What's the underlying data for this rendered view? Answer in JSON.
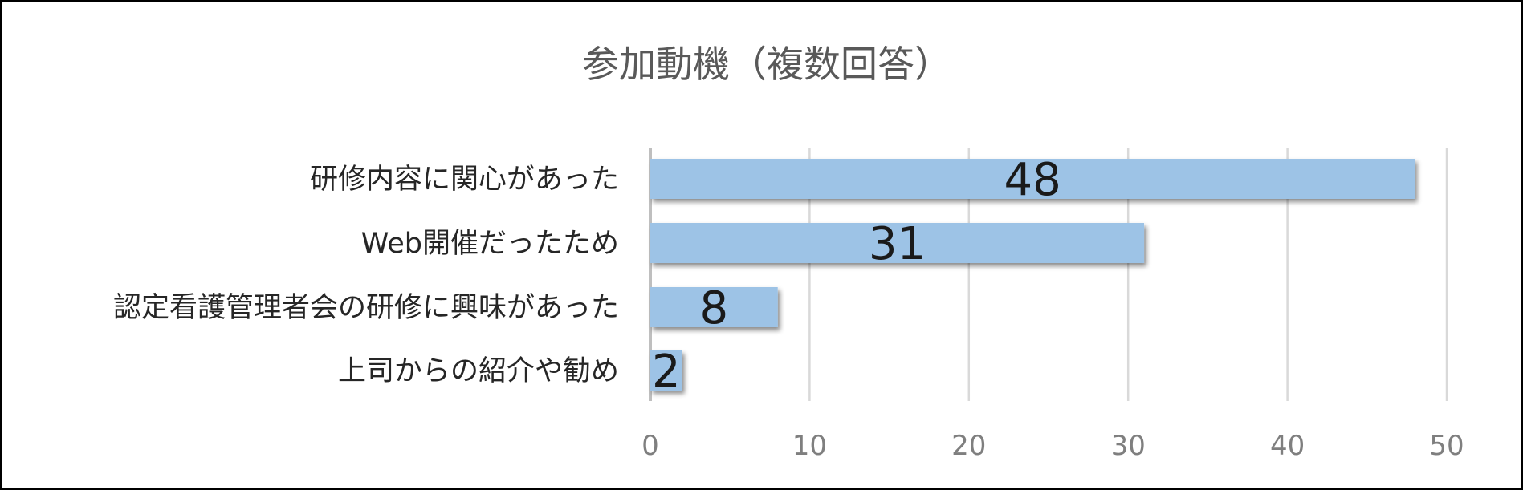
{
  "chart_data": {
    "type": "bar",
    "orientation": "horizontal",
    "title": "参加動機（複数回答）",
    "categories": [
      "研修内容に関心があった",
      "Web開催だったため",
      "認定看護管理者会の研修に興味があった",
      "上司からの紹介や勧め"
    ],
    "values": [
      48,
      31,
      8,
      2
    ],
    "xlim": [
      0,
      50
    ],
    "xticks": [
      0,
      10,
      20,
      30,
      40,
      50
    ],
    "xlabel": "",
    "ylabel": "",
    "grid": true,
    "legend": "none",
    "bar_color": "#9dc3e6",
    "data_labels": true
  }
}
